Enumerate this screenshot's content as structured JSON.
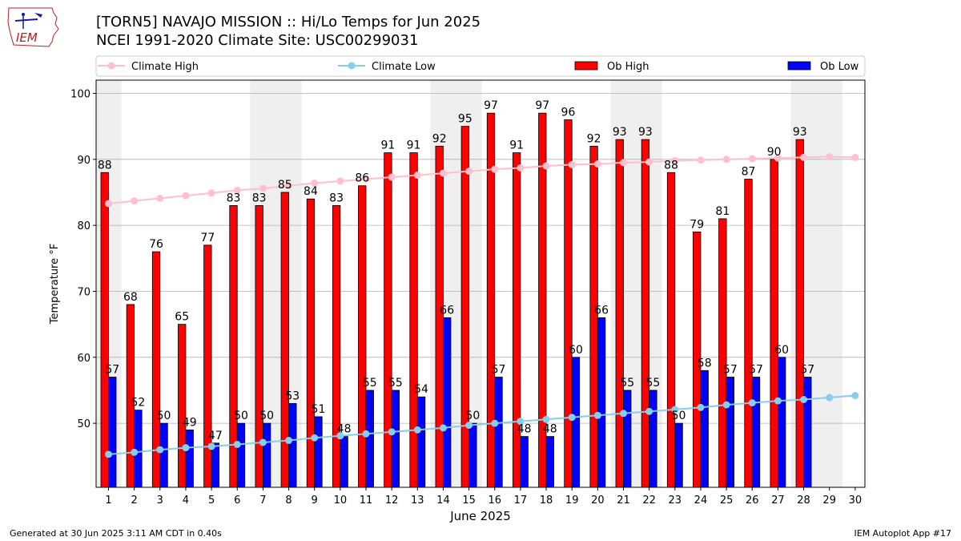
{
  "header": {
    "title_line1": "[TORN5] NAVAJO MISSION :: Hi/Lo Temps for Jun 2025",
    "title_line2": "NCEI 1991-2020 Climate Site: USC00299031",
    "logo_text": "IEM"
  },
  "footer": {
    "left": "Generated at 30 Jun 2025 3:11 AM CDT in 0.40s",
    "right": "IEM Autoplot App #17"
  },
  "colors": {
    "ob_high": "#ff0000",
    "ob_low": "#0000ff",
    "climate_high": "#ffc0cb",
    "climate_low": "#87ceeb",
    "weekend_shade": "#efefef",
    "grid": "#b0b0b0"
  },
  "chart_data": {
    "type": "bar",
    "xlabel": "June 2025",
    "ylabel": "Temperature °F",
    "ylim": [
      40.3,
      102
    ],
    "yticks": [
      50,
      60,
      70,
      80,
      90,
      100
    ],
    "grid": "horizontal",
    "legend_position": "top",
    "categories": [
      "1",
      "2",
      "3",
      "4",
      "5",
      "6",
      "7",
      "8",
      "9",
      "10",
      "11",
      "12",
      "13",
      "14",
      "15",
      "16",
      "17",
      "18",
      "19",
      "20",
      "21",
      "22",
      "23",
      "24",
      "25",
      "26",
      "27",
      "28",
      "29",
      "30"
    ],
    "shaded_days": [
      1,
      7,
      8,
      14,
      15,
      21,
      22,
      28,
      29
    ],
    "series": [
      {
        "name": "Climate High",
        "kind": "line",
        "values": [
          83.3,
          83.7,
          84.1,
          84.5,
          84.9,
          85.3,
          85.6,
          86.0,
          86.4,
          86.7,
          87.0,
          87.3,
          87.6,
          87.9,
          88.2,
          88.5,
          88.7,
          89.0,
          89.2,
          89.3,
          89.5,
          89.6,
          89.8,
          89.9,
          90.0,
          90.1,
          90.2,
          90.3,
          90.4,
          90.3
        ]
      },
      {
        "name": "Climate Low",
        "kind": "line",
        "values": [
          45.3,
          45.6,
          46.0,
          46.3,
          46.5,
          46.8,
          47.1,
          47.4,
          47.8,
          48.1,
          48.4,
          48.7,
          49.0,
          49.3,
          49.7,
          50.0,
          50.3,
          50.6,
          50.9,
          51.2,
          51.5,
          51.8,
          52.1,
          52.4,
          52.8,
          53.1,
          53.4,
          53.6,
          53.9,
          54.2
        ]
      },
      {
        "name": "Ob High",
        "kind": "bar",
        "values": [
          88,
          68,
          76,
          65,
          77,
          83,
          83,
          85,
          84,
          83,
          86,
          91,
          91,
          92,
          95,
          97,
          91,
          97,
          96,
          92,
          93,
          93,
          88,
          79,
          81,
          87,
          90,
          93,
          null,
          null
        ]
      },
      {
        "name": "Ob Low",
        "kind": "bar",
        "values": [
          57,
          52,
          50,
          49,
          47,
          50,
          50,
          53,
          51,
          48,
          55,
          55,
          54,
          66,
          50,
          57,
          48,
          48,
          60,
          66,
          55,
          55,
          50,
          58,
          57,
          57,
          60,
          57,
          null,
          null
        ]
      }
    ]
  }
}
